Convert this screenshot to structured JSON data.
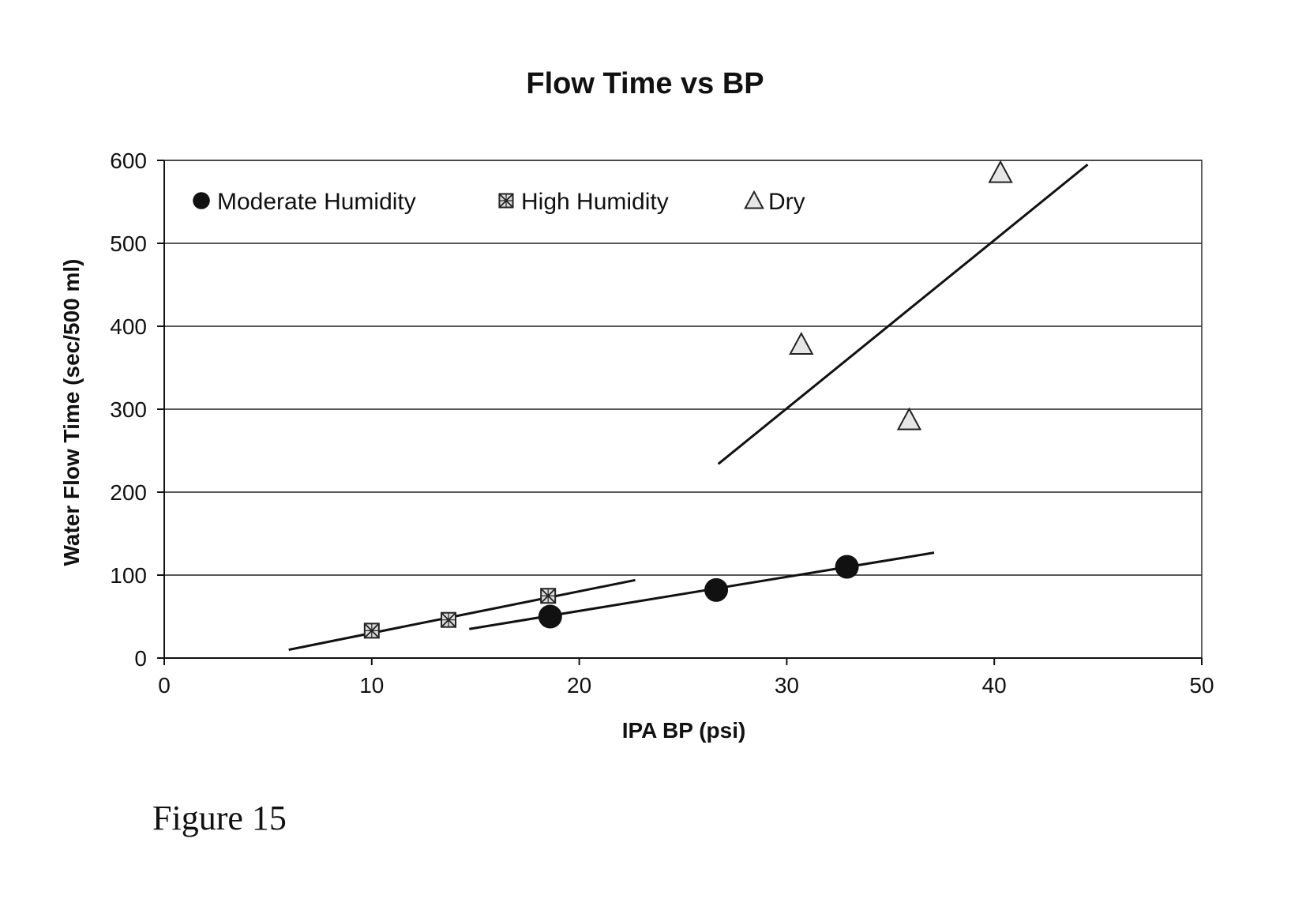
{
  "chart_data": {
    "type": "scatter",
    "title": "Flow Time vs BP",
    "xlabel": "IPA BP (psi)",
    "ylabel": "Water Flow Time (sec/500 ml)",
    "xlim": [
      0,
      50
    ],
    "ylim": [
      0,
      600
    ],
    "xticks": [
      0,
      10,
      20,
      30,
      40,
      50
    ],
    "yticks": [
      0,
      100,
      200,
      300,
      400,
      500,
      600
    ],
    "grid": "horizontal",
    "legend_position": "top-left",
    "series": [
      {
        "name": "Moderate Humidity",
        "marker": "circle",
        "points": [
          {
            "x": 18.6,
            "y": 50
          },
          {
            "x": 26.6,
            "y": 82
          },
          {
            "x": 32.9,
            "y": 110
          }
        ],
        "trendline": {
          "x": [
            14.7,
            37.1
          ],
          "y": [
            35,
            127
          ]
        }
      },
      {
        "name": "High Humidity",
        "marker": "square",
        "points": [
          {
            "x": 10.0,
            "y": 33
          },
          {
            "x": 13.7,
            "y": 46
          },
          {
            "x": 18.5,
            "y": 75
          }
        ],
        "trendline": {
          "x": [
            6.0,
            22.7
          ],
          "y": [
            10,
            94
          ]
        }
      },
      {
        "name": "Dry",
        "marker": "triangle",
        "points": [
          {
            "x": 30.7,
            "y": 378
          },
          {
            "x": 35.9,
            "y": 287
          },
          {
            "x": 40.3,
            "y": 585
          }
        ],
        "trendline": {
          "x": [
            26.7,
            44.5
          ],
          "y": [
            234,
            595
          ]
        }
      }
    ]
  },
  "caption": "Figure 15"
}
